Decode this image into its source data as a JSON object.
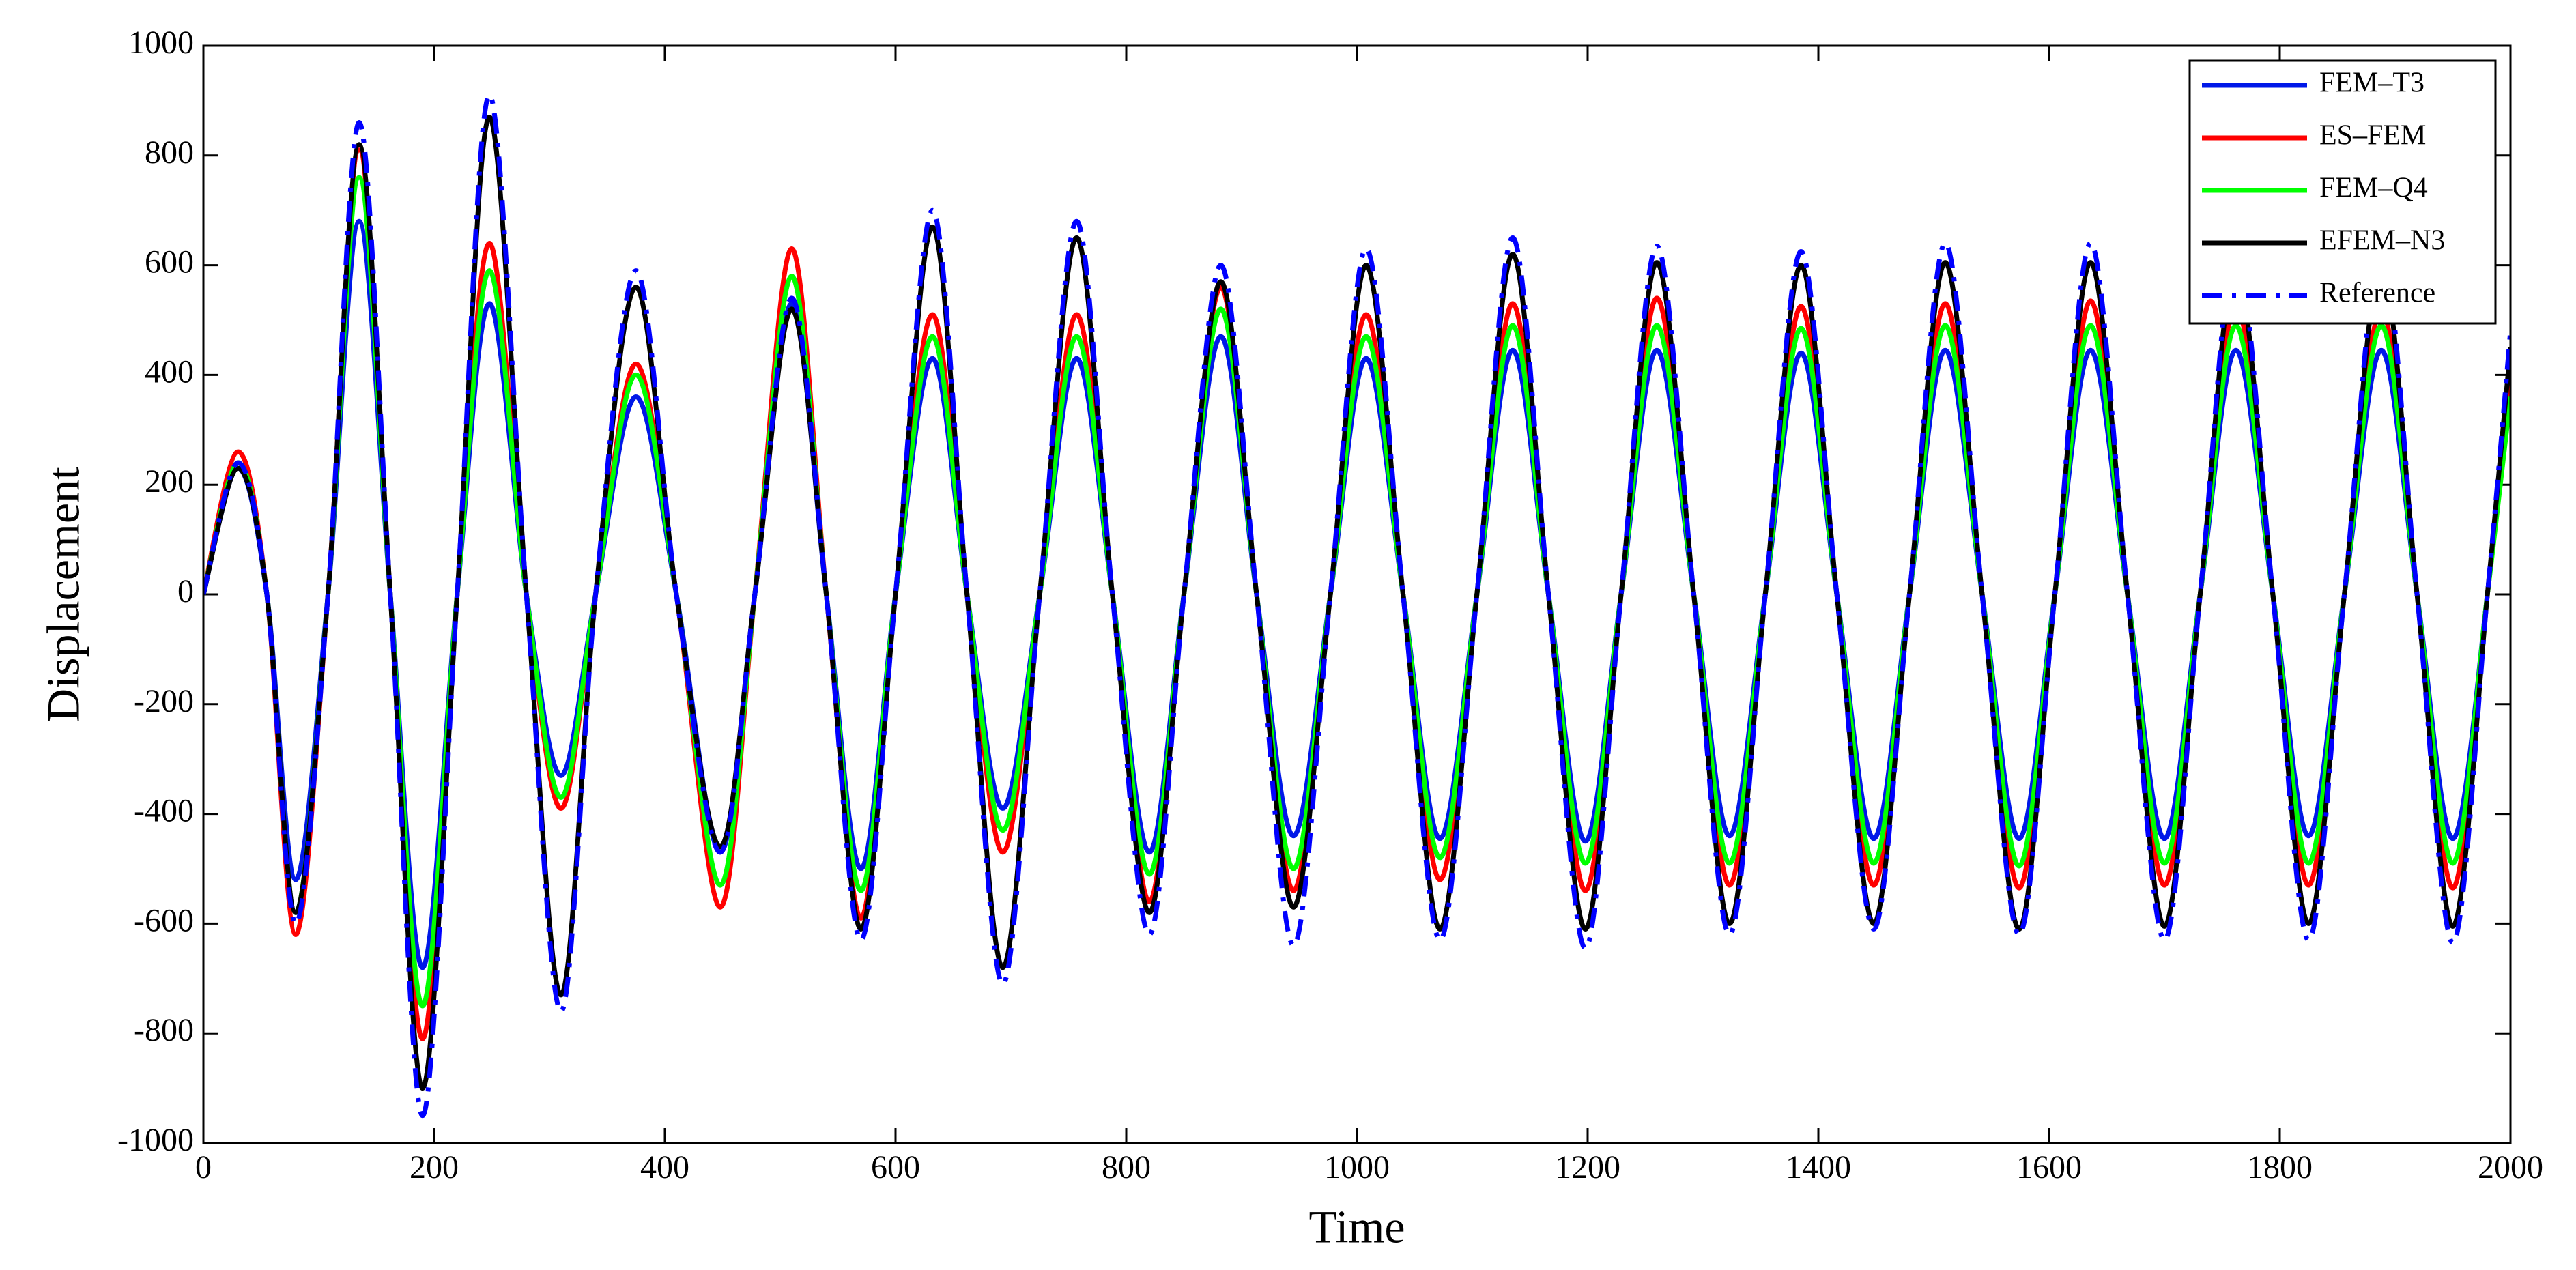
{
  "chart_data": {
    "type": "line",
    "xlabel": "Time",
    "ylabel": "Displacement",
    "x": [
      0,
      30,
      55,
      80,
      108,
      135,
      162,
      190,
      220,
      248,
      280,
      310,
      340,
      375,
      410,
      448,
      478,
      510,
      540,
      570,
      600,
      632,
      662,
      693,
      725,
      757,
      788,
      820,
      850,
      882,
      913,
      945,
      977,
      1008,
      1040,
      1072,
      1104,
      1135,
      1166,
      1198,
      1229,
      1260,
      1292,
      1323,
      1354,
      1385,
      1416,
      1448,
      1479,
      1510,
      1542,
      1574,
      1605,
      1636,
      1668,
      1700,
      1731,
      1762,
      1794,
      1825,
      1856,
      1888,
      1919,
      1950,
      1980,
      2000
    ],
    "series": [
      {
        "name": "FEM–T3",
        "color": "#0018e8",
        "line_style": "solid",
        "values": [
          0,
          230,
          0,
          -520,
          0,
          680,
          0,
          -680,
          0,
          530,
          0,
          -330,
          0,
          360,
          0,
          -470,
          0,
          530,
          0,
          -500,
          0,
          430,
          0,
          -390,
          0,
          430,
          0,
          -470,
          0,
          470,
          0,
          -440,
          0,
          430,
          0,
          -445,
          0,
          445,
          0,
          -450,
          0,
          445,
          0,
          -440,
          0,
          440,
          0,
          -445,
          0,
          445,
          0,
          -445,
          0,
          445,
          0,
          -445,
          0,
          445,
          0,
          -440,
          0,
          445,
          0,
          -445,
          0,
          420
        ]
      },
      {
        "name": "ES–FEM",
        "color": "#ff0000",
        "line_style": "solid",
        "values": [
          0,
          260,
          0,
          -620,
          0,
          810,
          0,
          -810,
          0,
          640,
          0,
          -390,
          0,
          420,
          0,
          -570,
          0,
          630,
          0,
          -590,
          0,
          510,
          0,
          -470,
          0,
          510,
          0,
          -560,
          0,
          560,
          0,
          -540,
          0,
          510,
          0,
          -520,
          0,
          530,
          0,
          -540,
          0,
          540,
          0,
          -530,
          0,
          525,
          0,
          -530,
          0,
          530,
          0,
          -535,
          0,
          535,
          0,
          -530,
          0,
          530,
          0,
          -530,
          0,
          520,
          0,
          -535,
          0,
          430
        ]
      },
      {
        "name": "FEM–Q4",
        "color": "#00ff00",
        "line_style": "solid",
        "values": [
          0,
          240,
          0,
          -580,
          0,
          760,
          0,
          -750,
          0,
          590,
          0,
          -370,
          0,
          400,
          0,
          -530,
          0,
          580,
          0,
          -540,
          0,
          470,
          0,
          -430,
          0,
          470,
          0,
          -510,
          0,
          520,
          0,
          -500,
          0,
          470,
          0,
          -480,
          0,
          490,
          0,
          -490,
          0,
          490,
          0,
          -490,
          0,
          485,
          0,
          -490,
          0,
          490,
          0,
          -495,
          0,
          490,
          0,
          -490,
          0,
          490,
          0,
          -490,
          0,
          490,
          0,
          -490,
          0,
          360
        ]
      },
      {
        "name": "EFEM–N3",
        "color": "#000000",
        "line_style": "solid",
        "values": [
          0,
          230,
          0,
          -580,
          0,
          820,
          0,
          -900,
          0,
          870,
          0,
          -730,
          0,
          560,
          0,
          -460,
          0,
          520,
          0,
          -610,
          0,
          670,
          0,
          -680,
          0,
          650,
          0,
          -580,
          0,
          570,
          0,
          -570,
          0,
          600,
          0,
          -610,
          0,
          620,
          0,
          -610,
          0,
          605,
          0,
          -600,
          0,
          600,
          0,
          -600,
          0,
          605,
          0,
          -610,
          0,
          605,
          0,
          -605,
          0,
          600,
          0,
          -600,
          0,
          600,
          0,
          -605,
          0,
          450
        ]
      },
      {
        "name": "Reference",
        "color": "#0000ff",
        "line_style": "dash-dot",
        "values": [
          0,
          240,
          0,
          -600,
          0,
          860,
          0,
          -950,
          0,
          910,
          0,
          -760,
          0,
          590,
          0,
          -470,
          0,
          540,
          0,
          -630,
          0,
          700,
          0,
          -710,
          0,
          680,
          0,
          -620,
          0,
          600,
          0,
          -640,
          0,
          630,
          0,
          -630,
          0,
          650,
          0,
          -645,
          0,
          635,
          0,
          -620,
          0,
          625,
          0,
          -610,
          0,
          640,
          0,
          -620,
          0,
          640,
          0,
          -630,
          0,
          630,
          0,
          -630,
          0,
          630,
          0,
          -635,
          0,
          480
        ]
      }
    ],
    "xlim": [
      0,
      2000
    ],
    "xticks": [
      0,
      200,
      400,
      600,
      800,
      1000,
      1200,
      1400,
      1600,
      1800,
      2000
    ],
    "ylim": [
      -1000,
      1000
    ],
    "yticks": [
      -1000,
      -800,
      -600,
      -400,
      -200,
      0,
      200,
      400,
      600,
      800,
      1000
    ],
    "legend": "northeast",
    "grid": false
  }
}
